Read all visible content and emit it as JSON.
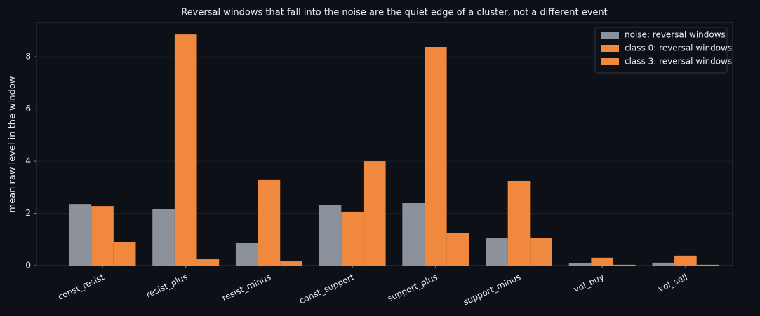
{
  "chart_data": {
    "type": "bar",
    "title": "Reversal windows that fall into the noise are the quiet edge of a cluster, not a different event",
    "y_label": "mean raw level in the window",
    "categories": [
      "const_resist",
      "resist_plus",
      "resist_minus",
      "const_support",
      "support_plus",
      "support_minus",
      "vol_buy",
      "vol_sell"
    ],
    "series": [
      {
        "name": "noise: reversal windows",
        "color": "#8b929c",
        "values": [
          2.36,
          2.17,
          0.86,
          2.31,
          2.39,
          1.05,
          0.08,
          0.11
        ]
      },
      {
        "name": "class 0: reversal windows",
        "color": "#f0883e",
        "values": [
          2.28,
          8.86,
          3.28,
          2.07,
          8.38,
          3.25,
          0.3,
          0.38
        ]
      },
      {
        "name": "class 3: reversal windows",
        "color": "#f0883e",
        "values": [
          0.89,
          0.24,
          0.16,
          4.0,
          1.26,
          1.05,
          0.03,
          0.03
        ]
      }
    ],
    "ylim": [
      0,
      9.32
    ],
    "yticks": [
      0,
      2,
      4,
      6,
      8
    ],
    "grid": true,
    "legend": "upper right"
  }
}
